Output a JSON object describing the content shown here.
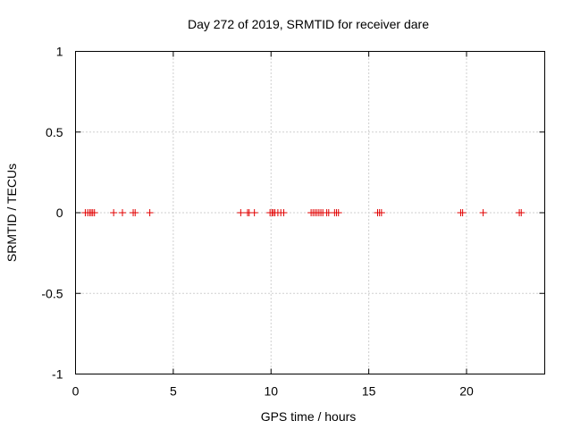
{
  "chart_data": {
    "type": "scatter",
    "title": "Day 272 of 2019, SRMTID for receiver dare",
    "xlabel": "GPS time / hours",
    "ylabel": "SRMTID / TECUs",
    "xlim": [
      0,
      24
    ],
    "ylim": [
      -1,
      1
    ],
    "x_ticks": [
      0,
      5,
      10,
      15,
      20
    ],
    "x_tick_labels": [
      "0",
      "5",
      "10",
      "15",
      "20"
    ],
    "y_ticks": [
      1,
      0.5,
      0,
      -0.5,
      -1
    ],
    "y_tick_labels": [
      "1",
      "0.5",
      "0",
      "-0.5",
      "-1"
    ],
    "grid": true,
    "series": [
      {
        "name": "SRMTID",
        "color": "#e00000",
        "marker": "plus",
        "x": [
          0.5,
          0.62,
          0.72,
          0.8,
          0.88,
          0.97,
          1.95,
          2.4,
          2.95,
          3.05,
          3.8,
          8.45,
          8.8,
          8.88,
          9.15,
          9.95,
          10.05,
          10.12,
          10.2,
          10.35,
          10.5,
          10.65,
          12.05,
          12.15,
          12.25,
          12.35,
          12.45,
          12.55,
          12.65,
          12.85,
          12.95,
          13.25,
          13.35,
          13.45,
          15.45,
          15.55,
          15.65,
          19.7,
          19.8,
          20.85,
          22.7,
          22.8
        ],
        "y": [
          0,
          0,
          0,
          0,
          0,
          0,
          0,
          0,
          0,
          0,
          0,
          0,
          0,
          0,
          0,
          0,
          0,
          0,
          0,
          0,
          0,
          0,
          0,
          0,
          0,
          0,
          0,
          0,
          0,
          0,
          0,
          0,
          0,
          0,
          0,
          0,
          0,
          0,
          0,
          0,
          0,
          0
        ]
      }
    ]
  }
}
